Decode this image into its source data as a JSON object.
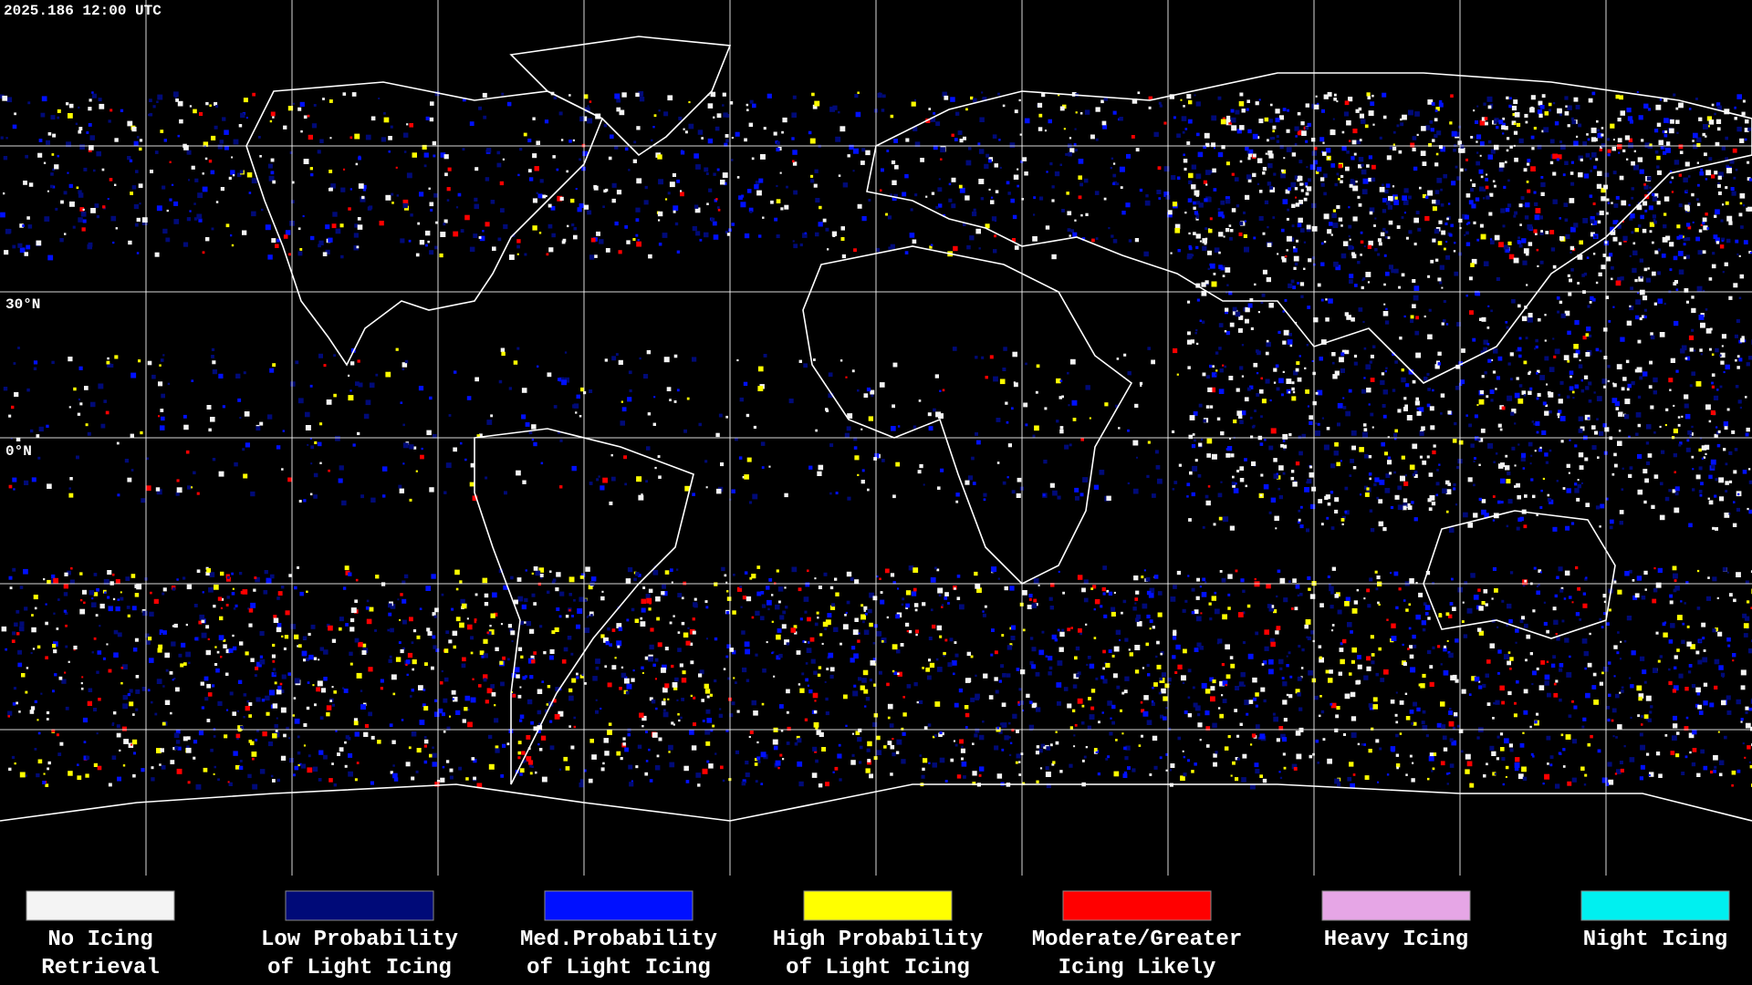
{
  "header": {
    "timestamp": "2025.186 12:00 UTC"
  },
  "map": {
    "lat_labels": [
      "30°N",
      "0°N"
    ]
  },
  "legend": {
    "items": [
      {
        "lines": [
          "No Icing",
          "Retrieval"
        ],
        "color": "#f4f4f4"
      },
      {
        "lines": [
          "Low Probability",
          "of Light Icing"
        ],
        "color": "#000a78"
      },
      {
        "lines": [
          "Med.Probability",
          "of Light Icing"
        ],
        "color": "#0010ff"
      },
      {
        "lines": [
          "High Probability",
          "of Light Icing"
        ],
        "color": "#ffff00"
      },
      {
        "lines": [
          "Moderate/Greater",
          "Icing Likely"
        ],
        "color": "#ff0000"
      },
      {
        "lines": [
          "Heavy Icing"
        ],
        "color": "#e6a6e6"
      },
      {
        "lines": [
          "Night Icing"
        ],
        "color": "#00f0f0"
      }
    ]
  }
}
